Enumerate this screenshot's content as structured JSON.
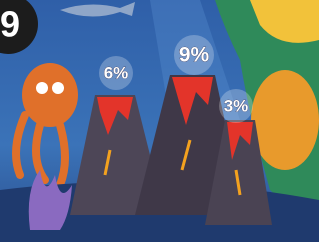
{
  "badge": "9",
  "volcanoes": [
    {
      "label": "6%"
    },
    {
      "label": "9%"
    },
    {
      "label": "3%"
    }
  ]
}
